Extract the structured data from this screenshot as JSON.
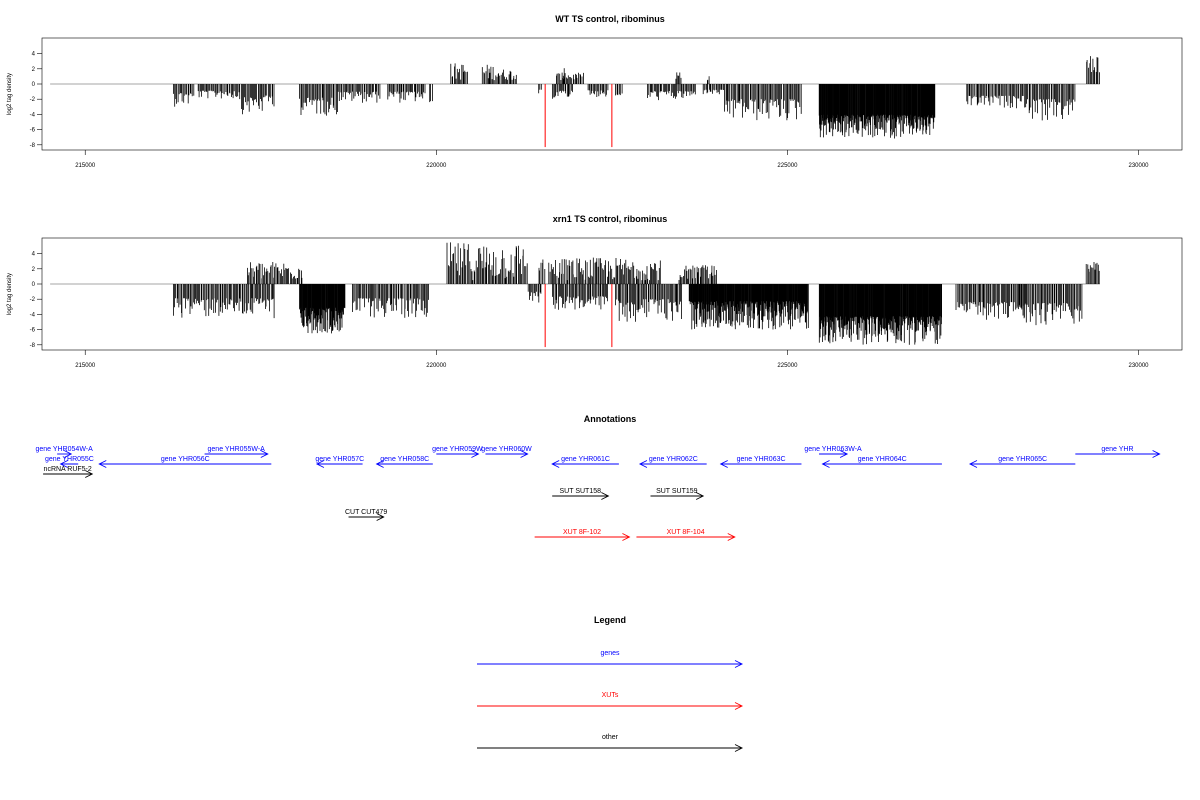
{
  "chart_data": [
    {
      "type": "bar",
      "title": "WT TS control, ribominus",
      "ylabel": "log2 tag density",
      "xlabel": "",
      "xlim": [
        214000,
        230000
      ],
      "ylim": [
        -8,
        5
      ],
      "x_ticks": [
        215000,
        220000,
        225000,
        230000
      ],
      "x_tick_labels": [
        "215000",
        "220000",
        "225000",
        "230000"
      ],
      "y_ticks": [
        -8,
        -6,
        -4,
        -2,
        0,
        2,
        4
      ],
      "y_tick_labels": [
        "-8",
        "-6",
        "-4",
        "-2",
        "0",
        "2",
        "4"
      ],
      "baseline": {
        "start": 214500,
        "end": 229450
      },
      "bar_color": "#000000",
      "marker_color": "#ff0000",
      "markers": [
        {
          "x": 221550,
          "y": -8.3
        },
        {
          "x": 222500,
          "y": -8.3
        }
      ],
      "series": [
        {
          "segments": [
            {
              "start": 216250,
              "end": 216550,
              "min": -3,
              "max": -0.5
            },
            {
              "start": 216600,
              "end": 217200,
              "min": -2,
              "max": -0.5
            },
            {
              "start": 217200,
              "end": 217550,
              "min": -4,
              "max": -1
            },
            {
              "start": 217550,
              "end": 217700,
              "min": -3,
              "max": -1
            },
            {
              "start": 218050,
              "end": 218600,
              "min": -4.2,
              "max": -1
            },
            {
              "start": 218600,
              "end": 219200,
              "min": -2.5,
              "max": -0.5
            },
            {
              "start": 219300,
              "end": 219850,
              "min": -2.5,
              "max": -0.5
            },
            {
              "start": 219900,
              "end": 219950,
              "min": -3,
              "max": -2
            },
            {
              "start": 220200,
              "end": 220450,
              "min": 0.5,
              "max": 2.8
            },
            {
              "start": 220650,
              "end": 220900,
              "min": 0.5,
              "max": 2.6
            },
            {
              "start": 220900,
              "end": 221150,
              "min": 0.5,
              "max": 2.0
            },
            {
              "start": 221450,
              "end": 221500,
              "min": -1.5,
              "max": -0.5
            },
            {
              "start": 221800,
              "end": 221850,
              "min": 1,
              "max": 4.2
            },
            {
              "start": 221650,
              "end": 221950,
              "min": -2,
              "max": -0.5
            },
            {
              "start": 221700,
              "end": 222100,
              "min": 0.5,
              "max": 1.5
            },
            {
              "start": 222150,
              "end": 222450,
              "min": -1.8,
              "max": -0.5
            },
            {
              "start": 222550,
              "end": 222650,
              "min": -2,
              "max": -1
            },
            {
              "start": 223000,
              "end": 223700,
              "min": -2.2,
              "max": -0.5
            },
            {
              "start": 223400,
              "end": 223500,
              "min": 0.5,
              "max": 1.6
            },
            {
              "start": 223800,
              "end": 224100,
              "min": -1.5,
              "max": -0.5
            },
            {
              "start": 223850,
              "end": 223900,
              "min": 0.5,
              "max": 1.4
            },
            {
              "start": 224100,
              "end": 225200,
              "min": -5,
              "max": -1
            },
            {
              "start": 225450,
              "end": 227100,
              "min": -7.2,
              "max": -3
            },
            {
              "start": 227550,
              "end": 228400,
              "min": -3.2,
              "max": -1
            },
            {
              "start": 228400,
              "end": 229100,
              "min": -5,
              "max": -1
            },
            {
              "start": 229250,
              "end": 229450,
              "min": 1.5,
              "max": 3.8
            }
          ]
        }
      ]
    },
    {
      "type": "bar",
      "title": "xrn1 TS control, ribominus",
      "ylabel": "log2 tag density",
      "xlabel": "",
      "xlim": [
        214000,
        230000
      ],
      "ylim": [
        -8,
        5
      ],
      "x_ticks": [
        215000,
        220000,
        225000,
        230000
      ],
      "x_tick_labels": [
        "215000",
        "220000",
        "225000",
        "230000"
      ],
      "y_ticks": [
        -8,
        -6,
        -4,
        -2,
        0,
        2,
        4
      ],
      "y_tick_labels": [
        "-8",
        "-6",
        "-4",
        "-2",
        "0",
        "2",
        "4"
      ],
      "baseline": {
        "start": 214500,
        "end": 229450
      },
      "bar_color": "#000000",
      "marker_color": "#ff0000",
      "markers": [
        {
          "x": 221550,
          "y": -8.3
        },
        {
          "x": 222500,
          "y": -8.3
        }
      ],
      "series": [
        {
          "segments": [
            {
              "start": 216250,
              "end": 217700,
              "min": -4.5,
              "max": -1
            },
            {
              "start": 217300,
              "end": 218100,
              "min": 0.5,
              "max": 3
            },
            {
              "start": 218050,
              "end": 218700,
              "min": -6.5,
              "max": -2
            },
            {
              "start": 218800,
              "end": 219900,
              "min": -4.5,
              "max": -1
            },
            {
              "start": 220150,
              "end": 221300,
              "min": 0.5,
              "max": 5.5
            },
            {
              "start": 221300,
              "end": 221500,
              "min": -2.5,
              "max": -0.5
            },
            {
              "start": 221450,
              "end": 221550,
              "min": 0.5,
              "max": 3.5
            },
            {
              "start": 221650,
              "end": 222450,
              "min": -3.5,
              "max": -1
            },
            {
              "start": 221600,
              "end": 223200,
              "min": 0.5,
              "max": 3.5
            },
            {
              "start": 222550,
              "end": 223500,
              "min": -5,
              "max": -1
            },
            {
              "start": 223450,
              "end": 224000,
              "min": 0.5,
              "max": 2.6
            },
            {
              "start": 223600,
              "end": 225300,
              "min": -6,
              "max": -1
            },
            {
              "start": 225450,
              "end": 227200,
              "min": -8,
              "max": -3
            },
            {
              "start": 227400,
              "end": 228400,
              "min": -5,
              "max": -1.5
            },
            {
              "start": 228300,
              "end": 229200,
              "min": -5.5,
              "max": -1.5
            },
            {
              "start": 229250,
              "end": 229450,
              "min": 1.5,
              "max": 3.0
            }
          ]
        }
      ]
    }
  ],
  "annotations": {
    "title": "Annotations",
    "features": [
      {
        "label": "gene YHR054W-A",
        "color": "#0000ff",
        "strand": "+",
        "start": 214600,
        "end": 214800,
        "row": 0
      },
      {
        "label": "gene YHR055W-A",
        "color": "#0000ff",
        "strand": "+",
        "start": 216700,
        "end": 217600,
        "row": 0
      },
      {
        "label": "gene YHR059W",
        "color": "#0000ff",
        "strand": "+",
        "start": 220000,
        "end": 220600,
        "row": 0
      },
      {
        "label": "gene YHR060W",
        "color": "#0000ff",
        "strand": "+",
        "start": 220700,
        "end": 221300,
        "row": 0
      },
      {
        "label": "gene YHR063W-A",
        "color": "#0000ff",
        "strand": "+",
        "start": 225450,
        "end": 225850,
        "row": 0
      },
      {
        "label": "gene YHR",
        "color": "#0000ff",
        "strand": "+",
        "start": 229100,
        "end": 230300,
        "row": 0
      },
      {
        "label": "gene YHR055C",
        "color": "#0000ff",
        "strand": "-",
        "start": 214650,
        "end": 214900,
        "row": 1
      },
      {
        "label": "gene YHR056C",
        "color": "#0000ff",
        "strand": "-",
        "start": 215200,
        "end": 217650,
        "row": 1
      },
      {
        "label": "gene YHR057C",
        "color": "#0000ff",
        "strand": "-",
        "start": 218300,
        "end": 218950,
        "row": 1
      },
      {
        "label": "gene YHR058C",
        "color": "#0000ff",
        "strand": "-",
        "start": 219150,
        "end": 219950,
        "row": 1
      },
      {
        "label": "gene YHR061C",
        "color": "#0000ff",
        "strand": "-",
        "start": 221650,
        "end": 222600,
        "row": 1
      },
      {
        "label": "gene YHR062C",
        "color": "#0000ff",
        "strand": "-",
        "start": 222900,
        "end": 223850,
        "row": 1
      },
      {
        "label": "gene YHR063C",
        "color": "#0000ff",
        "strand": "-",
        "start": 224050,
        "end": 225200,
        "row": 1
      },
      {
        "label": "gene YHR064C",
        "color": "#0000ff",
        "strand": "-",
        "start": 225500,
        "end": 227200,
        "row": 1
      },
      {
        "label": "gene YHR065C",
        "color": "#0000ff",
        "strand": "-",
        "start": 227600,
        "end": 229100,
        "row": 1
      },
      {
        "label": "ncRNA RUF5-2",
        "color": "#000000",
        "strand": "+",
        "start": 214400,
        "end": 215100,
        "row": 2
      },
      {
        "label": "SUT SUT158",
        "color": "#000000",
        "strand": "+",
        "start": 221650,
        "end": 222450,
        "row": 3
      },
      {
        "label": "SUT SUT159",
        "color": "#000000",
        "strand": "+",
        "start": 223050,
        "end": 223800,
        "row": 3
      },
      {
        "label": "CUT CUT479",
        "color": "#000000",
        "strand": "+",
        "start": 218750,
        "end": 219250,
        "row": 4
      },
      {
        "label": "XUT 8F-102",
        "color": "#ff0000",
        "strand": "+",
        "start": 221400,
        "end": 222750,
        "row": 5
      },
      {
        "label": "XUT 8F-104",
        "color": "#ff0000",
        "strand": "+",
        "start": 222850,
        "end": 224250,
        "row": 5
      }
    ]
  },
  "legend": {
    "title": "Legend",
    "items": [
      {
        "label": "genes",
        "color": "#0000ff"
      },
      {
        "label": "XUTs",
        "color": "#ff0000"
      },
      {
        "label": "other",
        "color": "#000000"
      }
    ]
  }
}
